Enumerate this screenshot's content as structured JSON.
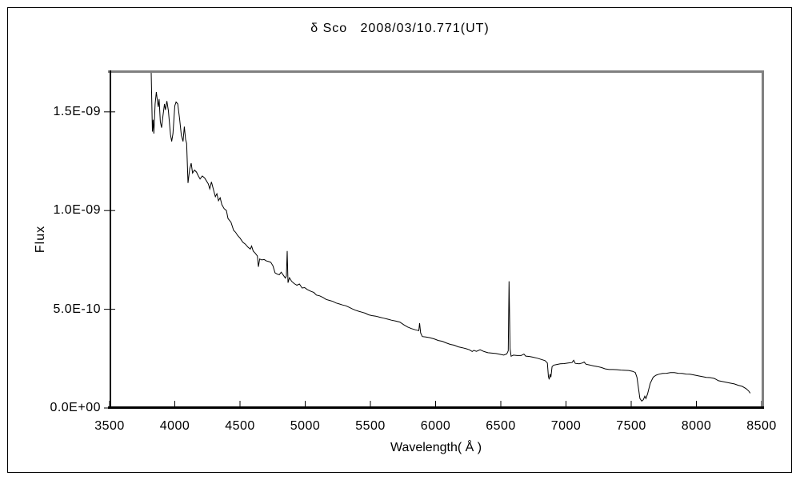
{
  "title": "δ Sco   2008/03/10.771(UT)",
  "colors": {
    "background": "#ffffff",
    "line": "#000000",
    "axis": "#000000",
    "frame_dark": "#000000",
    "frame_gray": "#808080",
    "text": "#000000"
  },
  "chart_data": {
    "type": "line",
    "title": "δ Sco   2008/03/10.771(UT)",
    "xlabel": "Wavelength( Å )",
    "ylabel": "Flux",
    "xlim": [
      3500,
      8500
    ],
    "ylim": [
      0,
      1.71e-09
    ],
    "grid": false,
    "legend": "none",
    "x_ticks": [
      3500,
      4000,
      4500,
      5000,
      5500,
      6000,
      6500,
      7000,
      7500,
      8000,
      8500
    ],
    "y_ticks": [
      {
        "value": 0,
        "label": "0.0E+00"
      },
      {
        "value": 5,
        "label": "5.0E-10"
      },
      {
        "value": 10,
        "label": "1.0E-09"
      },
      {
        "value": 15,
        "label": "1.5E-09"
      }
    ],
    "flux_scale": 1e-10,
    "series": [
      {
        "name": "spectrum",
        "points": [
          [
            3819,
            19.5
          ],
          [
            3828,
            14.0
          ],
          [
            3834,
            14.6
          ],
          [
            3839,
            13.9
          ],
          [
            3849,
            15.4
          ],
          [
            3858,
            16.0
          ],
          [
            3867,
            15.55
          ],
          [
            3873,
            15.25
          ],
          [
            3880,
            15.65
          ],
          [
            3889,
            14.5
          ],
          [
            3899,
            14.2
          ],
          [
            3909,
            14.8
          ],
          [
            3921,
            15.4
          ],
          [
            3928,
            15.1
          ],
          [
            3939,
            15.55
          ],
          [
            3951,
            15.05
          ],
          [
            3967,
            13.85
          ],
          [
            3976,
            13.5
          ],
          [
            3986,
            13.9
          ],
          [
            4000,
            15.3
          ],
          [
            4010,
            15.5
          ],
          [
            4023,
            15.4
          ],
          [
            4037,
            14.65
          ],
          [
            4050,
            13.8
          ],
          [
            4063,
            13.5
          ],
          [
            4073,
            14.25
          ],
          [
            4083,
            13.6
          ],
          [
            4091,
            13.4
          ],
          [
            4101,
            11.4
          ],
          [
            4114,
            12.1
          ],
          [
            4126,
            12.4
          ],
          [
            4136,
            11.9
          ],
          [
            4151,
            12.05
          ],
          [
            4166,
            11.95
          ],
          [
            4181,
            11.75
          ],
          [
            4194,
            11.6
          ],
          [
            4211,
            11.75
          ],
          [
            4229,
            11.65
          ],
          [
            4243,
            11.5
          ],
          [
            4257,
            11.35
          ],
          [
            4268,
            11.1
          ],
          [
            4281,
            11.45
          ],
          [
            4299,
            11.0
          ],
          [
            4311,
            10.7
          ],
          [
            4323,
            10.85
          ],
          [
            4335,
            10.5
          ],
          [
            4348,
            10.65
          ],
          [
            4361,
            10.3
          ],
          [
            4378,
            10.1
          ],
          [
            4396,
            10.0
          ],
          [
            4408,
            9.6
          ],
          [
            4431,
            9.4
          ],
          [
            4451,
            9.0
          ],
          [
            4466,
            8.9
          ],
          [
            4481,
            8.75
          ],
          [
            4501,
            8.6
          ],
          [
            4521,
            8.4
          ],
          [
            4541,
            8.3
          ],
          [
            4561,
            8.15
          ],
          [
            4579,
            8.05
          ],
          [
            4589,
            8.2
          ],
          [
            4601,
            7.95
          ],
          [
            4616,
            7.85
          ],
          [
            4633,
            7.7
          ],
          [
            4641,
            7.15
          ],
          [
            4651,
            7.55
          ],
          [
            4666,
            7.5
          ],
          [
            4686,
            7.52
          ],
          [
            4701,
            7.45
          ],
          [
            4719,
            7.42
          ],
          [
            4736,
            7.38
          ],
          [
            4753,
            7.2
          ],
          [
            4769,
            6.85
          ],
          [
            4786,
            6.78
          ],
          [
            4801,
            6.75
          ],
          [
            4816,
            6.88
          ],
          [
            4833,
            6.72
          ],
          [
            4848,
            6.58
          ],
          [
            4856,
            6.7
          ],
          [
            4862,
            7.95
          ],
          [
            4868,
            6.35
          ],
          [
            4879,
            6.6
          ],
          [
            4896,
            6.42
          ],
          [
            4916,
            6.3
          ],
          [
            4936,
            6.22
          ],
          [
            4956,
            6.28
          ],
          [
            4976,
            6.08
          ],
          [
            4996,
            6.1
          ],
          [
            5016,
            6.0
          ],
          [
            5041,
            5.92
          ],
          [
            5066,
            5.85
          ],
          [
            5086,
            5.72
          ],
          [
            5111,
            5.68
          ],
          [
            5136,
            5.6
          ],
          [
            5161,
            5.5
          ],
          [
            5186,
            5.45
          ],
          [
            5211,
            5.4
          ],
          [
            5236,
            5.32
          ],
          [
            5261,
            5.27
          ],
          [
            5286,
            5.22
          ],
          [
            5311,
            5.18
          ],
          [
            5336,
            5.1
          ],
          [
            5361,
            5.02
          ],
          [
            5386,
            4.95
          ],
          [
            5411,
            4.9
          ],
          [
            5436,
            4.85
          ],
          [
            5461,
            4.8
          ],
          [
            5486,
            4.72
          ],
          [
            5511,
            4.68
          ],
          [
            5541,
            4.65
          ],
          [
            5571,
            4.6
          ],
          [
            5601,
            4.55
          ],
          [
            5631,
            4.5
          ],
          [
            5661,
            4.45
          ],
          [
            5696,
            4.4
          ],
          [
            5726,
            4.35
          ],
          [
            5756,
            4.22
          ],
          [
            5786,
            4.1
          ],
          [
            5816,
            4.02
          ],
          [
            5846,
            3.96
          ],
          [
            5871,
            3.92
          ],
          [
            5877,
            4.3
          ],
          [
            5885,
            3.8
          ],
          [
            5898,
            3.62
          ],
          [
            5926,
            3.6
          ],
          [
            5956,
            3.56
          ],
          [
            5989,
            3.5
          ],
          [
            6021,
            3.42
          ],
          [
            6051,
            3.38
          ],
          [
            6081,
            3.3
          ],
          [
            6113,
            3.22
          ],
          [
            6143,
            3.18
          ],
          [
            6173,
            3.1
          ],
          [
            6206,
            3.05
          ],
          [
            6236,
            3.0
          ],
          [
            6259,
            2.95
          ],
          [
            6281,
            2.86
          ],
          [
            6293,
            2.92
          ],
          [
            6313,
            2.87
          ],
          [
            6341,
            2.95
          ],
          [
            6371,
            2.86
          ],
          [
            6401,
            2.8
          ],
          [
            6431,
            2.78
          ],
          [
            6463,
            2.76
          ],
          [
            6493,
            2.72
          ],
          [
            6523,
            2.68
          ],
          [
            6546,
            2.74
          ],
          [
            6557,
            2.9
          ],
          [
            6563,
            6.42
          ],
          [
            6571,
            3.0
          ],
          [
            6579,
            2.62
          ],
          [
            6597,
            2.68
          ],
          [
            6626,
            2.66
          ],
          [
            6656,
            2.66
          ],
          [
            6677,
            2.73
          ],
          [
            6691,
            2.63
          ],
          [
            6721,
            2.61
          ],
          [
            6751,
            2.57
          ],
          [
            6781,
            2.52
          ],
          [
            6811,
            2.46
          ],
          [
            6839,
            2.4
          ],
          [
            6857,
            2.28
          ],
          [
            6865,
            1.6
          ],
          [
            6871,
            1.45
          ],
          [
            6878,
            1.72
          ],
          [
            6884,
            1.56
          ],
          [
            6893,
            2.1
          ],
          [
            6906,
            2.17
          ],
          [
            6926,
            2.2
          ],
          [
            6956,
            2.24
          ],
          [
            6986,
            2.25
          ],
          [
            7016,
            2.28
          ],
          [
            7046,
            2.3
          ],
          [
            7059,
            2.42
          ],
          [
            7071,
            2.26
          ],
          [
            7101,
            2.24
          ],
          [
            7126,
            2.28
          ],
          [
            7139,
            2.33
          ],
          [
            7153,
            2.22
          ],
          [
            7181,
            2.18
          ],
          [
            7211,
            2.13
          ],
          [
            7241,
            2.1
          ],
          [
            7271,
            2.05
          ],
          [
            7301,
            1.98
          ],
          [
            7331,
            1.95
          ],
          [
            7361,
            1.95
          ],
          [
            7391,
            1.94
          ],
          [
            7421,
            1.92
          ],
          [
            7451,
            1.91
          ],
          [
            7481,
            1.9
          ],
          [
            7509,
            1.86
          ],
          [
            7531,
            1.8
          ],
          [
            7544,
            1.55
          ],
          [
            7556,
            1.0
          ],
          [
            7567,
            0.48
          ],
          [
            7581,
            0.35
          ],
          [
            7593,
            0.42
          ],
          [
            7604,
            0.6
          ],
          [
            7613,
            0.48
          ],
          [
            7626,
            0.72
          ],
          [
            7646,
            1.25
          ],
          [
            7669,
            1.56
          ],
          [
            7691,
            1.66
          ],
          [
            7711,
            1.71
          ],
          [
            7741,
            1.75
          ],
          [
            7771,
            1.76
          ],
          [
            7801,
            1.79
          ],
          [
            7831,
            1.79
          ],
          [
            7861,
            1.76
          ],
          [
            7891,
            1.75
          ],
          [
            7921,
            1.72
          ],
          [
            7951,
            1.71
          ],
          [
            7983,
            1.67
          ],
          [
            8013,
            1.63
          ],
          [
            8045,
            1.59
          ],
          [
            8076,
            1.55
          ],
          [
            8106,
            1.54
          ],
          [
            8136,
            1.5
          ],
          [
            8151,
            1.45
          ],
          [
            8169,
            1.38
          ],
          [
            8199,
            1.34
          ],
          [
            8229,
            1.3
          ],
          [
            8259,
            1.26
          ],
          [
            8291,
            1.22
          ],
          [
            8321,
            1.15
          ],
          [
            8351,
            1.1
          ],
          [
            8381,
            0.98
          ],
          [
            8401,
            0.86
          ],
          [
            8413,
            0.75
          ]
        ]
      }
    ]
  }
}
